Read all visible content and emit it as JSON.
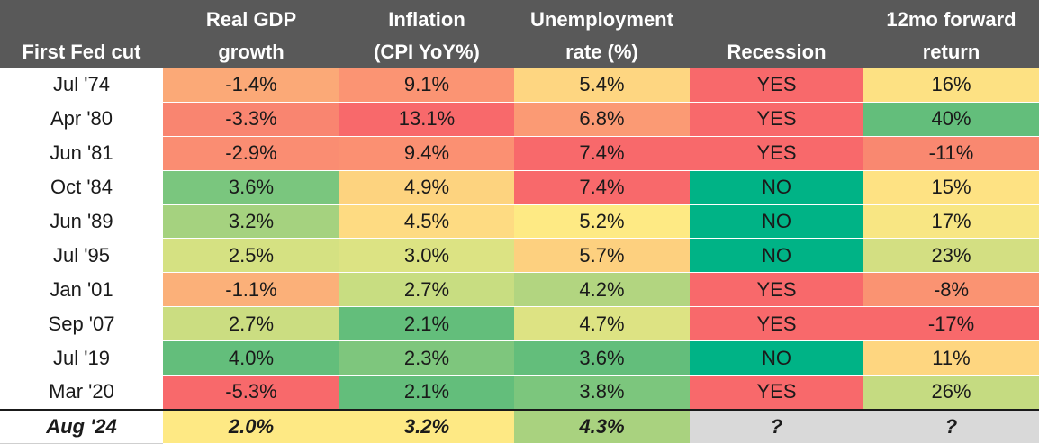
{
  "table": {
    "headers": [
      [
        "",
        "First Fed cut"
      ],
      [
        "Real GDP",
        "growth"
      ],
      [
        "Inflation",
        "(CPI YoY%)"
      ],
      [
        "Unemployment",
        "rate (%)"
      ],
      [
        "",
        "Recession"
      ],
      [
        "12mo forward",
        "return"
      ]
    ],
    "colors": {
      "header_bg": "#595959",
      "unknown_bg": "#d9d9d9",
      "recession_yes": "#f8696b",
      "recession_no": "#00b386"
    },
    "rows": [
      {
        "label": "Jul '74",
        "cells": [
          {
            "value": "-1.4%",
            "color": "#fba977"
          },
          {
            "value": "9.1%",
            "color": "#fb9473"
          },
          {
            "value": "5.4%",
            "color": "#fed681"
          },
          {
            "value": "YES",
            "color": "#f8696b"
          },
          {
            "value": "16%",
            "color": "#fde183"
          }
        ]
      },
      {
        "label": "Apr '80",
        "cells": [
          {
            "value": "-3.3%",
            "color": "#f98570"
          },
          {
            "value": "13.1%",
            "color": "#f8696b"
          },
          {
            "value": "6.8%",
            "color": "#fb9a74"
          },
          {
            "value": "YES",
            "color": "#f8696b"
          },
          {
            "value": "40%",
            "color": "#63be7b"
          }
        ]
      },
      {
        "label": "Jun '81",
        "cells": [
          {
            "value": "-2.9%",
            "color": "#fa8d72"
          },
          {
            "value": "9.4%",
            "color": "#fb9072"
          },
          {
            "value": "7.4%",
            "color": "#f8696b"
          },
          {
            "value": "YES",
            "color": "#f8696b"
          },
          {
            "value": "-11%",
            "color": "#f98870"
          }
        ]
      },
      {
        "label": "Oct '84",
        "cells": [
          {
            "value": "3.6%",
            "color": "#7ac67e"
          },
          {
            "value": "4.9%",
            "color": "#fdd37f"
          },
          {
            "value": "7.4%",
            "color": "#f8696b"
          },
          {
            "value": "NO",
            "color": "#00b386"
          },
          {
            "value": "15%",
            "color": "#fee283"
          }
        ]
      },
      {
        "label": "Jun '89",
        "cells": [
          {
            "value": "3.2%",
            "color": "#a5d27f"
          },
          {
            "value": "4.5%",
            "color": "#fedb82"
          },
          {
            "value": "5.2%",
            "color": "#feea84"
          },
          {
            "value": "NO",
            "color": "#00b386"
          },
          {
            "value": "17%",
            "color": "#f8e683"
          }
        ]
      },
      {
        "label": "Jul '95",
        "cells": [
          {
            "value": "2.5%",
            "color": "#d5e182"
          },
          {
            "value": "3.0%",
            "color": "#dce383"
          },
          {
            "value": "5.7%",
            "color": "#fdd07f"
          },
          {
            "value": "NO",
            "color": "#00b386"
          },
          {
            "value": "23%",
            "color": "#d3df82"
          }
        ]
      },
      {
        "label": "Jan '01",
        "cells": [
          {
            "value": "-1.1%",
            "color": "#fbb079"
          },
          {
            "value": "2.7%",
            "color": "#c8dd81"
          },
          {
            "value": "4.2%",
            "color": "#b2d580"
          },
          {
            "value": "YES",
            "color": "#f8696b"
          },
          {
            "value": "-8%",
            "color": "#fa9372"
          }
        ]
      },
      {
        "label": "Sep '07",
        "cells": [
          {
            "value": "2.7%",
            "color": "#cbdd81"
          },
          {
            "value": "2.1%",
            "color": "#63be7b"
          },
          {
            "value": "4.7%",
            "color": "#dde383"
          },
          {
            "value": "YES",
            "color": "#f8696b"
          },
          {
            "value": "-17%",
            "color": "#f8696b"
          }
        ]
      },
      {
        "label": "Jul '19",
        "cells": [
          {
            "value": "4.0%",
            "color": "#63be7b"
          },
          {
            "value": "2.3%",
            "color": "#7ec67d"
          },
          {
            "value": "3.6%",
            "color": "#63be7b"
          },
          {
            "value": "NO",
            "color": "#00b386"
          },
          {
            "value": "11%",
            "color": "#fed680"
          }
        ]
      },
      {
        "label": "Mar '20",
        "cells": [
          {
            "value": "-5.3%",
            "color": "#f8696b"
          },
          {
            "value": "2.1%",
            "color": "#63be7b"
          },
          {
            "value": "3.8%",
            "color": "#7cc67d"
          },
          {
            "value": "YES",
            "color": "#f8696b"
          },
          {
            "value": "26%",
            "color": "#c5db81"
          }
        ]
      }
    ],
    "highlight_row": {
      "label": "Aug '24",
      "cells": [
        {
          "value": "2.0%",
          "color": "#fee984"
        },
        {
          "value": "3.2%",
          "color": "#fee984"
        },
        {
          "value": "4.3%",
          "color": "#a9d27f"
        },
        {
          "value": "?",
          "color": "#d9d9d9"
        },
        {
          "value": "?",
          "color": "#d9d9d9"
        }
      ]
    }
  }
}
